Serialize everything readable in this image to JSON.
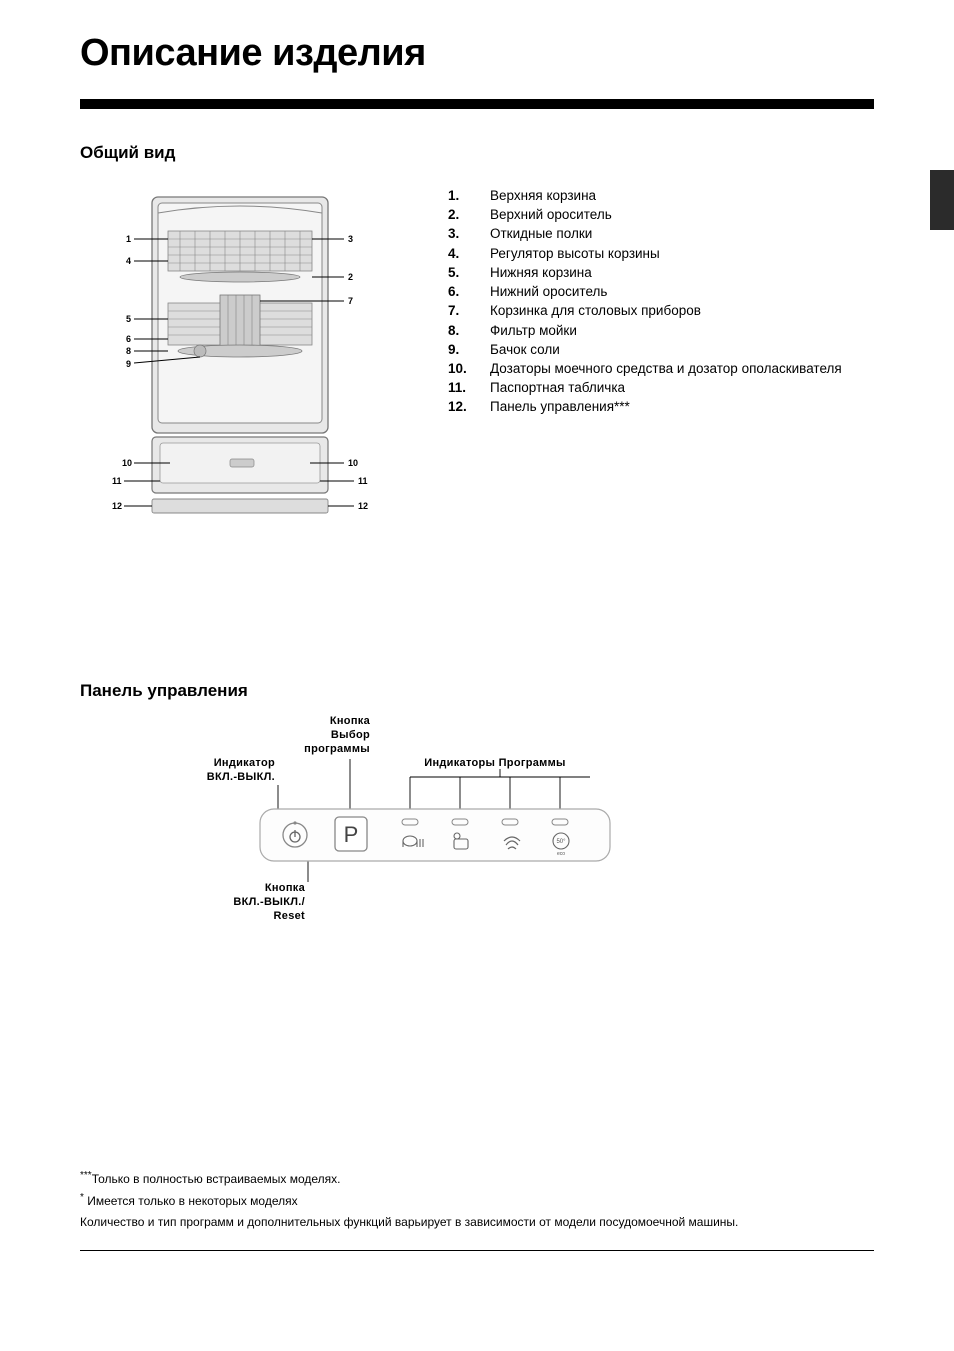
{
  "page_title": "Описание изделия",
  "section_overview": "Общий вид",
  "section_control": "Панель управления",
  "parts": [
    {
      "num": "1.",
      "label": "Верхняя корзина"
    },
    {
      "num": "2.",
      "label": "Верхний ороситель"
    },
    {
      "num": "3.",
      "label": "Откидные полки"
    },
    {
      "num": "4.",
      "label": "Регулятор высоты корзины"
    },
    {
      "num": "5.",
      "label": "Нижняя корзина"
    },
    {
      "num": "6.",
      "label": "Нижний ороситель"
    },
    {
      "num": "7.",
      "label": "Корзинка для столовых приборов"
    },
    {
      "num": "8.",
      "label": "Фильтр мойки"
    },
    {
      "num": "9.",
      "label": "Бачок соли"
    },
    {
      "num": "10.",
      "label": "Дозаторы моечного средства и дозатор ополаскивателя"
    },
    {
      "num": "11.",
      "label": "Паспортная табличка"
    },
    {
      "num": "12.",
      "label": "Панель управления***"
    }
  ],
  "callouts": {
    "prog_select": "Кнопка\nВыбор\nпрограммы",
    "indicator_on_off": "Индикатор\nВКЛ.-ВЫКЛ.",
    "prog_indicators": "Индикаторы Программы",
    "on_off_reset": "Кнопка\nВКЛ.-ВЫКЛ./\nReset"
  },
  "control_button_label": "P",
  "control_eco_label": "50°",
  "control_eco_sub": "eco",
  "footnotes": {
    "f1_mark": "***",
    "f1_text": "Только в полностью встраиваемых моделях.",
    "f2_mark": "*",
    "f2_text": "Имеется только в некоторых моделях",
    "f3_text": "Количество и тип программ и дополнительных функций варьирует в зависимости от модели посудомоечной машины."
  },
  "diagram_labels": [
    "1",
    "2",
    "3",
    "4",
    "5",
    "6",
    "7",
    "8",
    "9",
    "10",
    "10",
    "11",
    "11",
    "12",
    "12"
  ],
  "colors": {
    "text": "#000000",
    "bg": "#ffffff",
    "diagram_fill": "#e8e8e8",
    "diagram_stroke": "#777777",
    "diagram_dark": "#555555",
    "panel_stroke": "#888888",
    "panel_fill": "#f5f5f5",
    "side_tab": "#2b2b2b"
  },
  "typography": {
    "title_size": 38,
    "section_size": 17,
    "body_size": 13.5,
    "callout_size": 11,
    "footnote_size": 12
  }
}
